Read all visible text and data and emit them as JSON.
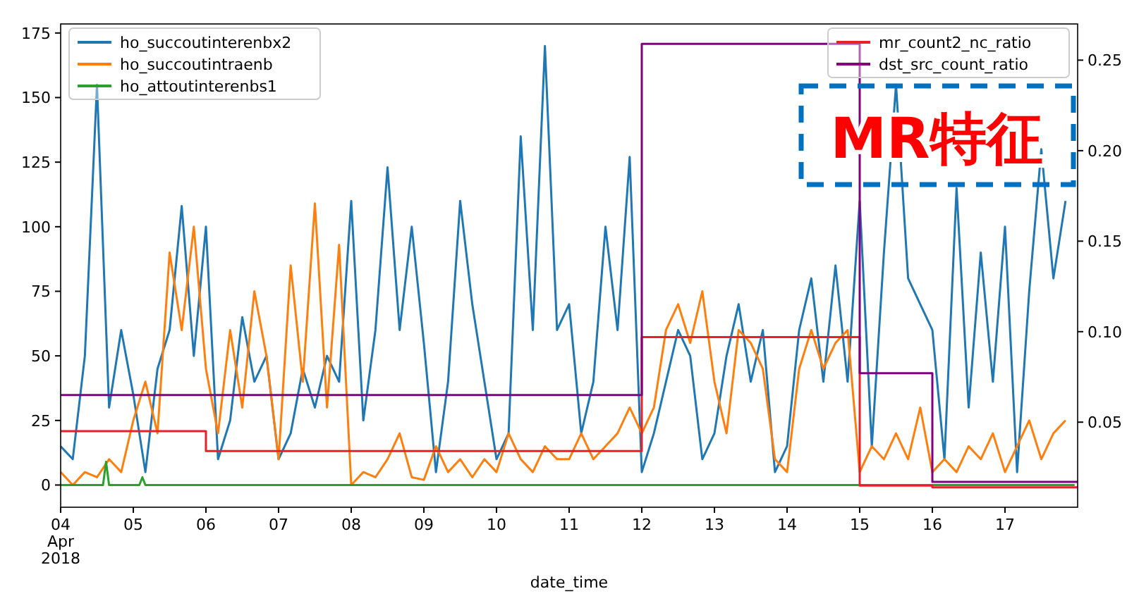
{
  "chart_data": {
    "type": "line",
    "xlabel": "date_time",
    "x": [
      "2018-04-04T00:00",
      "2018-04-04T04:00",
      "2018-04-04T08:00",
      "2018-04-04T12:00",
      "2018-04-04T16:00",
      "2018-04-04T20:00",
      "2018-04-05T00:00",
      "2018-04-05T04:00",
      "2018-04-05T08:00",
      "2018-04-05T12:00",
      "2018-04-05T16:00",
      "2018-04-05T20:00",
      "2018-04-06T00:00",
      "2018-04-06T04:00",
      "2018-04-06T08:00",
      "2018-04-06T12:00",
      "2018-04-06T16:00",
      "2018-04-06T20:00",
      "2018-04-07T00:00",
      "2018-04-07T04:00",
      "2018-04-07T08:00",
      "2018-04-07T12:00",
      "2018-04-07T16:00",
      "2018-04-07T20:00",
      "2018-04-08T00:00",
      "2018-04-08T04:00",
      "2018-04-08T08:00",
      "2018-04-08T12:00",
      "2018-04-08T16:00",
      "2018-04-08T20:00",
      "2018-04-09T00:00",
      "2018-04-09T04:00",
      "2018-04-09T08:00",
      "2018-04-09T12:00",
      "2018-04-09T16:00",
      "2018-04-09T20:00",
      "2018-04-10T00:00",
      "2018-04-10T04:00",
      "2018-04-10T08:00",
      "2018-04-10T12:00",
      "2018-04-10T16:00",
      "2018-04-10T20:00",
      "2018-04-11T00:00",
      "2018-04-11T04:00",
      "2018-04-11T08:00",
      "2018-04-11T12:00",
      "2018-04-11T16:00",
      "2018-04-11T20:00",
      "2018-04-12T00:00",
      "2018-04-12T04:00",
      "2018-04-12T08:00",
      "2018-04-12T12:00",
      "2018-04-12T16:00",
      "2018-04-12T20:00",
      "2018-04-13T00:00",
      "2018-04-13T04:00",
      "2018-04-13T08:00",
      "2018-04-13T12:00",
      "2018-04-13T16:00",
      "2018-04-13T20:00",
      "2018-04-14T00:00",
      "2018-04-14T04:00",
      "2018-04-14T08:00",
      "2018-04-14T12:00",
      "2018-04-14T16:00",
      "2018-04-14T20:00",
      "2018-04-15T00:00",
      "2018-04-15T04:00",
      "2018-04-15T08:00",
      "2018-04-15T12:00",
      "2018-04-15T16:00",
      "2018-04-15T20:00",
      "2018-04-16T00:00",
      "2018-04-16T04:00",
      "2018-04-16T08:00",
      "2018-04-16T12:00",
      "2018-04-16T16:00",
      "2018-04-16T20:00",
      "2018-04-17T00:00",
      "2018-04-17T04:00",
      "2018-04-17T08:00",
      "2018-04-17T12:00",
      "2018-04-17T16:00",
      "2018-04-17T20:00"
    ],
    "series": [
      {
        "name": "ho_succoutinterenbx2",
        "color": "#1f77b4",
        "values": [
          15,
          10,
          50,
          155,
          30,
          60,
          35,
          5,
          45,
          60,
          108,
          50,
          100,
          10,
          25,
          65,
          40,
          50,
          10,
          20,
          45,
          30,
          50,
          40,
          110,
          25,
          60,
          123,
          60,
          100,
          55,
          5,
          40,
          110,
          70,
          40,
          10,
          20,
          135,
          60,
          170,
          60,
          70,
          20,
          40,
          100,
          60,
          127,
          5,
          20,
          40,
          60,
          50,
          10,
          20,
          50,
          70,
          40,
          60,
          5,
          15,
          60,
          80,
          40,
          85,
          40,
          110,
          15,
          90,
          155,
          80,
          70,
          60,
          10,
          115,
          30,
          90,
          40,
          100,
          5,
          75,
          130,
          80,
          110
        ]
      },
      {
        "name": "ho_succoutintraenb",
        "color": "#ff7f0e",
        "values": [
          5,
          0,
          5,
          3,
          10,
          5,
          25,
          40,
          20,
          90,
          60,
          100,
          45,
          20,
          60,
          30,
          75,
          50,
          10,
          85,
          40,
          109,
          30,
          93,
          0,
          5,
          3,
          10,
          20,
          3,
          2,
          15,
          5,
          10,
          3,
          10,
          5,
          20,
          10,
          5,
          15,
          10,
          10,
          20,
          10,
          15,
          20,
          30,
          20,
          30,
          60,
          70,
          55,
          75,
          40,
          20,
          60,
          55,
          45,
          10,
          5,
          45,
          60,
          45,
          55,
          60,
          5,
          15,
          10,
          20,
          10,
          30,
          5,
          10,
          5,
          15,
          10,
          20,
          5,
          15,
          25,
          10,
          20,
          25
        ]
      },
      {
        "name": "ho_attoutinterenbs1",
        "color": "#2ca02c",
        "x": [
          "2018-04-04T00:00",
          "2018-04-04T14:00",
          "2018-04-04T15:00",
          "2018-04-04T16:00",
          "2018-04-05T02:00",
          "2018-04-05T03:00",
          "2018-04-05T04:00",
          "2018-04-17T23:00"
        ],
        "values": [
          0,
          0,
          9,
          0,
          0,
          3,
          0,
          0
        ]
      },
      {
        "name": "mr_count2_nc_ratio",
        "color": "#e8202a",
        "type": "step",
        "axis": "y2",
        "x": [
          "2018-04-04",
          "2018-04-06",
          "2018-04-12",
          "2018-04-15",
          "2018-04-16",
          "2018-04-18"
        ],
        "values": [
          0.045,
          0.034,
          0.097,
          0.015,
          0.014,
          0.014
        ]
      },
      {
        "name": "dst_src_count_ratio",
        "color": "#800080",
        "type": "step",
        "axis": "y2",
        "x": [
          "2018-04-04",
          "2018-04-12",
          "2018-04-15",
          "2018-04-16",
          "2018-04-18"
        ],
        "values": [
          0.065,
          0.259,
          0.077,
          0.017,
          0.017
        ]
      }
    ],
    "xlim": [
      "2018-04-04",
      "2018-04-18"
    ],
    "xticks": [
      {
        "value": "2018-04-04",
        "label": "04\nApr\n2018"
      },
      {
        "value": "2018-04-05",
        "label": "05"
      },
      {
        "value": "2018-04-06",
        "label": "06"
      },
      {
        "value": "2018-04-07",
        "label": "07"
      },
      {
        "value": "2018-04-08",
        "label": "08"
      },
      {
        "value": "2018-04-09",
        "label": "09"
      },
      {
        "value": "2018-04-10",
        "label": "10"
      },
      {
        "value": "2018-04-11",
        "label": "11"
      },
      {
        "value": "2018-04-12",
        "label": "12"
      },
      {
        "value": "2018-04-13",
        "label": "13"
      },
      {
        "value": "2018-04-14",
        "label": "14"
      },
      {
        "value": "2018-04-15",
        "label": "15"
      },
      {
        "value": "2018-04-16",
        "label": "16"
      },
      {
        "value": "2018-04-17",
        "label": "17"
      }
    ],
    "ylim": [
      -8.6,
      178.5
    ],
    "yticks": [
      0,
      25,
      50,
      75,
      100,
      125,
      150,
      175
    ],
    "y2lim": [
      0.003,
      0.27
    ],
    "y2ticks": [
      0.05,
      {
        "value": 0.1,
        "label": "0.10"
      },
      0.15,
      {
        "value": 0.2,
        "label": "0.20"
      },
      0.25
    ],
    "legend": "top left",
    "annotations": [
      "MR特征"
    ]
  }
}
